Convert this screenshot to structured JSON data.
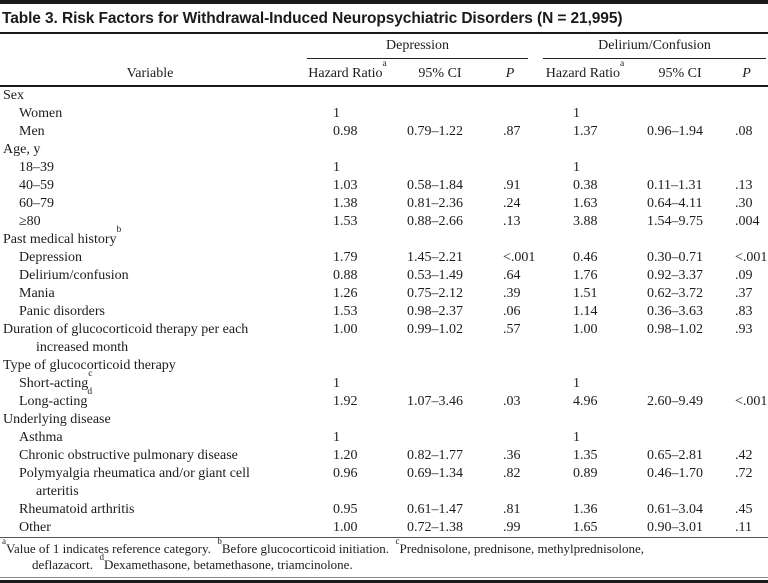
{
  "title": "Table 3. Risk Factors for Withdrawal-Induced Neuropsychiatric Disorders (N = 21,995)",
  "header": {
    "variable_label": "Variable",
    "groups": [
      {
        "label": "Depression"
      },
      {
        "label": "Delirium/Confusion"
      }
    ],
    "columns": {
      "hazard_ratio": "Hazard Ratio",
      "hazard_ratio_sup": "a",
      "ci": "95% CI",
      "p": "P"
    }
  },
  "rows": [
    {
      "label": "Sex",
      "indent": 0,
      "values": [
        "",
        "",
        "",
        "",
        "",
        ""
      ]
    },
    {
      "label": "Women",
      "indent": 1,
      "values": [
        "1",
        "",
        "",
        "1",
        "",
        ""
      ]
    },
    {
      "label": "Men",
      "indent": 1,
      "values": [
        "0.98",
        "0.79–1.22",
        ".87",
        "1.37",
        "0.96–1.94",
        ".08"
      ]
    },
    {
      "label": "Age, y",
      "indent": 0,
      "values": [
        "",
        "",
        "",
        "",
        "",
        ""
      ]
    },
    {
      "label": "18–39",
      "indent": 1,
      "values": [
        "1",
        "",
        "",
        "1",
        "",
        ""
      ]
    },
    {
      "label": "40–59",
      "indent": 1,
      "values": [
        "1.03",
        "0.58–1.84",
        ".91",
        "0.38",
        "0.11–1.31",
        ".13"
      ]
    },
    {
      "label": "60–79",
      "indent": 1,
      "values": [
        "1.38",
        "0.81–2.36",
        ".24",
        "1.63",
        "0.64–4.11",
        ".30"
      ]
    },
    {
      "label": "≥80",
      "indent": 1,
      "values": [
        "1.53",
        "0.88–2.66",
        ".13",
        "3.88",
        "1.54–9.75",
        ".004"
      ]
    },
    {
      "label": "Past medical history",
      "sup": "b",
      "indent": 0,
      "values": [
        "",
        "",
        "",
        "",
        "",
        ""
      ]
    },
    {
      "label": "Depression",
      "indent": 1,
      "values": [
        "1.79",
        "1.45–2.21",
        "<.001",
        "0.46",
        "0.30–0.71",
        "<.001"
      ]
    },
    {
      "label": "Delirium/confusion",
      "indent": 1,
      "values": [
        "0.88",
        "0.53–1.49",
        ".64",
        "1.76",
        "0.92–3.37",
        ".09"
      ]
    },
    {
      "label": "Mania",
      "indent": 1,
      "values": [
        "1.26",
        "0.75–2.12",
        ".39",
        "1.51",
        "0.62–3.72",
        ".37"
      ]
    },
    {
      "label": "Panic disorders",
      "indent": 1,
      "values": [
        "1.53",
        "0.98–2.37",
        ".06",
        "1.14",
        "0.36–3.63",
        ".83"
      ]
    },
    {
      "label": "Duration of glucocorticoid therapy per each",
      "label2": "increased month",
      "indent": 0,
      "values": [
        "1.00",
        "0.99–1.02",
        ".57",
        "1.00",
        "0.98–1.02",
        ".93"
      ]
    },
    {
      "label": "Type of glucocorticoid therapy",
      "indent": 0,
      "values": [
        "",
        "",
        "",
        "",
        "",
        ""
      ]
    },
    {
      "label": "Short-acting",
      "sup": "c",
      "indent": 1,
      "values": [
        "1",
        "",
        "",
        "1",
        "",
        ""
      ]
    },
    {
      "label": "Long-acting",
      "sup": "d",
      "indent": 1,
      "values": [
        "1.92",
        "1.07–3.46",
        ".03",
        "4.96",
        "2.60–9.49",
        "<.001"
      ]
    },
    {
      "label": "Underlying disease",
      "indent": 0,
      "values": [
        "",
        "",
        "",
        "",
        "",
        ""
      ]
    },
    {
      "label": "Asthma",
      "indent": 1,
      "values": [
        "1",
        "",
        "",
        "1",
        "",
        ""
      ]
    },
    {
      "label": "Chronic obstructive pulmonary disease",
      "indent": 1,
      "values": [
        "1.20",
        "0.82–1.77",
        ".36",
        "1.35",
        "0.65–2.81",
        ".42"
      ]
    },
    {
      "label": "Polymyalgia rheumatica and/or giant cell",
      "label2": "arteritis",
      "indent": 1,
      "values": [
        "0.96",
        "0.69–1.34",
        ".82",
        "0.89",
        "0.46–1.70",
        ".72"
      ]
    },
    {
      "label": "Rheumatoid arthritis",
      "indent": 1,
      "values": [
        "0.95",
        "0.61–1.47",
        ".81",
        "1.36",
        "0.61–3.04",
        ".45"
      ]
    },
    {
      "label": "Other",
      "indent": 1,
      "values": [
        "1.00",
        "0.72–1.38",
        ".99",
        "1.65",
        "0.90–3.01",
        ".11"
      ]
    }
  ],
  "footnotes": [
    {
      "sup": "a",
      "text": "Value of 1 indicates reference category."
    },
    {
      "sup": "b",
      "text": "Before glucocorticoid initiation."
    },
    {
      "sup": "c",
      "text": "Prednisolone, prednisone, methylprednisolone, deflazacort."
    },
    {
      "sup": "d",
      "text": "Dexamethasone, betamethasone, triamcinolone."
    }
  ]
}
